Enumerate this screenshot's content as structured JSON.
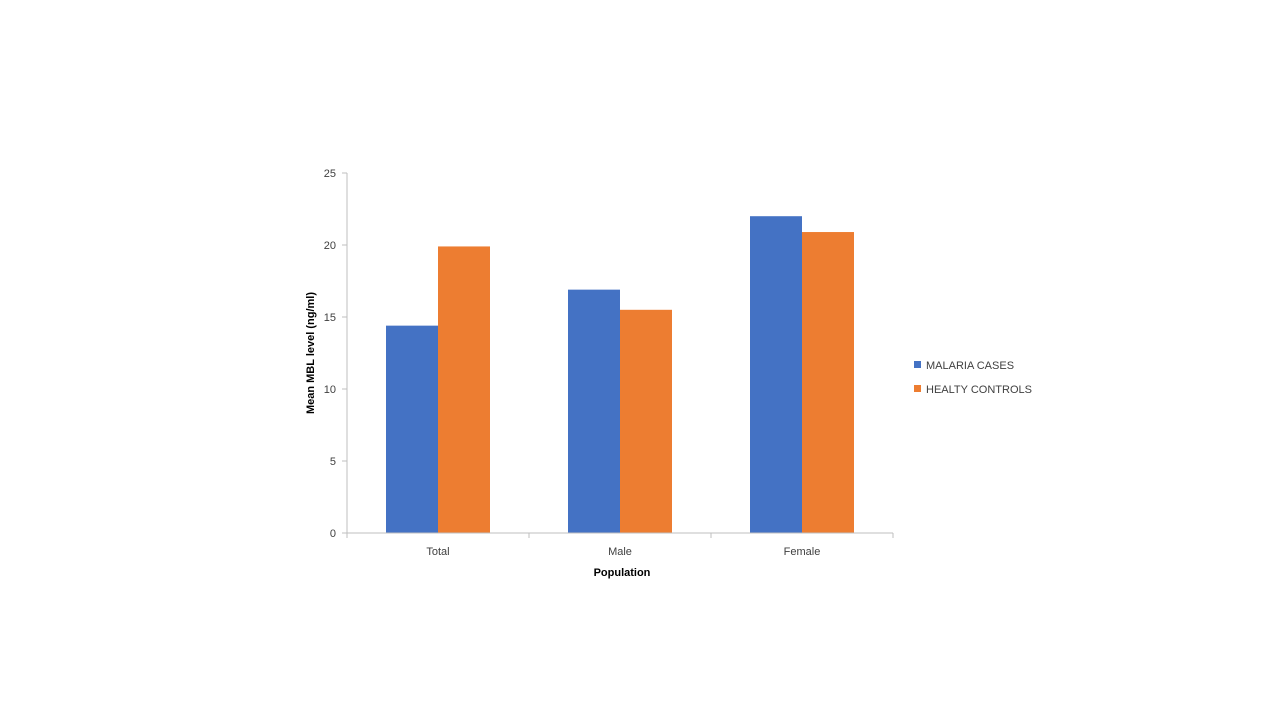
{
  "chart_data": {
    "type": "bar",
    "categories": [
      "Total",
      "Male",
      "Female"
    ],
    "series": [
      {
        "name": "MALARIA CASES",
        "values": [
          14.4,
          16.9,
          22.0
        ],
        "color": "#4472c4"
      },
      {
        "name": "HEALTY CONTROLS",
        "values": [
          19.9,
          15.5,
          20.9
        ],
        "color": "#ed7d31"
      }
    ],
    "title": "",
    "xlabel": "Population",
    "ylabel": "Mean MBL level (ng/ml)",
    "ylim": [
      0,
      25
    ],
    "yticks": [
      "0",
      "5",
      "10",
      "15",
      "20",
      "25"
    ],
    "grid": false,
    "legend_position": "right"
  }
}
